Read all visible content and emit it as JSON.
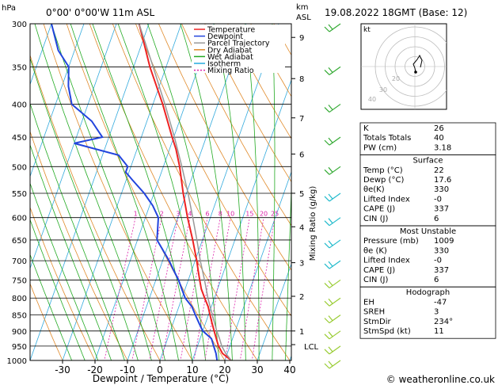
{
  "header": {
    "location": "0°00' 0°00'W 11m ASL",
    "datetime": "19.08.2022 18GMT (Base: 12)",
    "pressure_unit": "hPa",
    "height_unit_km": "km",
    "height_unit_asl": "ASL",
    "mixing_ratio_axis_label": "Mixing Ratio (g/kg)",
    "x_axis_label": "Dewpoint / Temperature (°C)",
    "lcl_label": "LCL",
    "hodograph_unit": "kt",
    "hodo_ring_labels": [
      "40",
      "30",
      "20"
    ],
    "footer": "© weatheronline.co.uk"
  },
  "legend": [
    {
      "label": "Temperature",
      "color": "#ee2222",
      "dash": ""
    },
    {
      "label": "Dewpoint",
      "color": "#2244dd",
      "dash": ""
    },
    {
      "label": "Parcel Trajectory",
      "color": "#999999",
      "dash": ""
    },
    {
      "label": "Dry Adiabat",
      "color": "#e08a2a",
      "dash": ""
    },
    {
      "label": "Wet Adiabat",
      "color": "#22aa22",
      "dash": ""
    },
    {
      "label": "Isotherm",
      "color": "#22aadd",
      "dash": ""
    },
    {
      "label": "Mixing Ratio",
      "color": "#dd22aa",
      "dash": "2,2"
    }
  ],
  "chart_data": {
    "type": "line",
    "title": "",
    "xlabel": "Dewpoint / Temperature (°C)",
    "ylabel": "hPa",
    "pressure_range": [
      1000,
      300
    ],
    "x_range": [
      -35,
      40
    ],
    "x_ticks": [
      -30,
      -20,
      -10,
      0,
      10,
      20,
      30,
      40
    ],
    "pressure_ticks": [
      300,
      350,
      400,
      450,
      500,
      550,
      600,
      650,
      700,
      750,
      800,
      850,
      900,
      950,
      1000
    ],
    "height_km_ticks": [
      {
        "label": "1",
        "p": 900
      },
      {
        "label": "2",
        "p": 795
      },
      {
        "label": "3",
        "p": 705
      },
      {
        "label": "4",
        "p": 620
      },
      {
        "label": "5",
        "p": 550
      },
      {
        "label": "6",
        "p": 478
      },
      {
        "label": "7",
        "p": 420
      },
      {
        "label": "8",
        "p": 365
      },
      {
        "label": "9",
        "p": 315
      }
    ],
    "mixing_ratio_labels": [
      1,
      2,
      3,
      4,
      6,
      8,
      10,
      15,
      20,
      25
    ],
    "lcl_pressure": 945,
    "series": [
      {
        "name": "Temperature",
        "color": "#ee2222",
        "points": [
          [
            1000,
            22
          ],
          [
            975,
            18.5
          ],
          [
            950,
            16.5
          ],
          [
            925,
            15
          ],
          [
            900,
            13.5
          ],
          [
            875,
            12
          ],
          [
            850,
            10.5
          ],
          [
            825,
            9
          ],
          [
            800,
            7
          ],
          [
            775,
            5
          ],
          [
            750,
            3.5
          ],
          [
            725,
            2
          ],
          [
            700,
            0.5
          ],
          [
            650,
            -3
          ],
          [
            600,
            -7
          ],
          [
            550,
            -11
          ],
          [
            500,
            -15
          ],
          [
            470,
            -18
          ],
          [
            450,
            -20.5
          ],
          [
            400,
            -27
          ],
          [
            350,
            -35
          ],
          [
            300,
            -43
          ]
        ]
      },
      {
        "name": "Dewpoint",
        "color": "#2244dd",
        "points": [
          [
            1000,
            17.6
          ],
          [
            975,
            16.5
          ],
          [
            950,
            15
          ],
          [
            925,
            13.5
          ],
          [
            900,
            10
          ],
          [
            875,
            8
          ],
          [
            850,
            6
          ],
          [
            825,
            4
          ],
          [
            800,
            1
          ],
          [
            775,
            -1
          ],
          [
            750,
            -3
          ],
          [
            725,
            -5.5
          ],
          [
            700,
            -8
          ],
          [
            650,
            -14
          ],
          [
            600,
            -16
          ],
          [
            575,
            -19
          ],
          [
            550,
            -23
          ],
          [
            525,
            -28
          ],
          [
            510,
            -31
          ],
          [
            500,
            -31
          ],
          [
            480,
            -35
          ],
          [
            460,
            -50
          ],
          [
            450,
            -42
          ],
          [
            425,
            -47
          ],
          [
            400,
            -55
          ],
          [
            375,
            -58
          ],
          [
            350,
            -60
          ],
          [
            330,
            -65
          ],
          [
            300,
            -70
          ]
        ]
      },
      {
        "name": "Parcel Trajectory",
        "color": "#999999",
        "points": [
          [
            1000,
            22
          ],
          [
            975,
            19.5
          ],
          [
            950,
            17.5
          ],
          [
            925,
            16
          ],
          [
            900,
            14.3
          ],
          [
            850,
            11.2
          ],
          [
            800,
            8
          ],
          [
            750,
            5
          ],
          [
            700,
            1.6
          ],
          [
            650,
            -1.7
          ],
          [
            600,
            -5.4
          ],
          [
            550,
            -9.5
          ],
          [
            500,
            -14.3
          ],
          [
            450,
            -19.8
          ],
          [
            400,
            -26.3
          ],
          [
            350,
            -34
          ],
          [
            300,
            -43
          ]
        ]
      }
    ]
  },
  "wind_barbs": [
    {
      "p": 1000,
      "color": "#99cc33"
    },
    {
      "p": 950,
      "color": "#99cc33"
    },
    {
      "p": 900,
      "color": "#99cc33"
    },
    {
      "p": 850,
      "color": "#99cc33"
    },
    {
      "p": 800,
      "color": "#99cc33"
    },
    {
      "p": 750,
      "color": "#99cc33"
    },
    {
      "p": 700,
      "color": "#22bbcc"
    },
    {
      "p": 650,
      "color": "#22bbcc"
    },
    {
      "p": 600,
      "color": "#22bbcc"
    },
    {
      "p": 550,
      "color": "#22bbcc"
    },
    {
      "p": 500,
      "color": "#33aa33"
    },
    {
      "p": 450,
      "color": "#33aa33"
    },
    {
      "p": 400,
      "color": "#33aa33"
    },
    {
      "p": 350,
      "color": "#33aa33"
    },
    {
      "p": 300,
      "color": "#33aa33"
    }
  ],
  "hodograph": {
    "points": [
      [
        1,
        -7
      ],
      [
        0,
        -2
      ],
      [
        -2,
        3
      ],
      [
        3,
        9
      ],
      [
        6,
        14
      ],
      [
        9,
        8
      ],
      [
        7,
        -1
      ]
    ]
  },
  "indices": {
    "rows": [
      {
        "label": "K",
        "value": "26"
      },
      {
        "label": "Totals Totals",
        "value": "40"
      },
      {
        "label": "PW (cm)",
        "value": "3.18"
      }
    ],
    "surface": {
      "title": "Surface",
      "rows": [
        {
          "label": "Temp (°C)",
          "value": "22"
        },
        {
          "label": "Dewp (°C)",
          "value": "17.6"
        },
        {
          "label": "θe(K)",
          "value": "330"
        },
        {
          "label": "Lifted Index",
          "value": "-0"
        },
        {
          "label": "CAPE (J)",
          "value": "337"
        },
        {
          "label": "CIN (J)",
          "value": "6"
        }
      ]
    },
    "most_unstable": {
      "title": "Most Unstable",
      "rows": [
        {
          "label": "Pressure (mb)",
          "value": "1009"
        },
        {
          "label": "θe (K)",
          "value": "330"
        },
        {
          "label": "Lifted Index",
          "value": "-0"
        },
        {
          "label": "CAPE (J)",
          "value": "337"
        },
        {
          "label": "CIN (J)",
          "value": "6"
        }
      ]
    },
    "hodograph_box": {
      "title": "Hodograph",
      "rows": [
        {
          "label": "EH",
          "value": "-47"
        },
        {
          "label": "SREH",
          "value": "3"
        },
        {
          "label": "StmDir",
          "value": "234°"
        },
        {
          "label": "StmSpd (kt)",
          "value": "11"
        }
      ]
    }
  }
}
